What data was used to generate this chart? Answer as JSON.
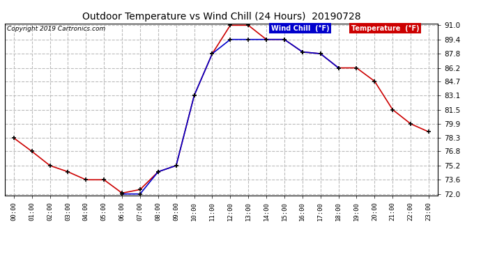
{
  "title": "Outdoor Temperature vs Wind Chill (24 Hours)  20190728",
  "copyright": "Copyright 2019 Cartronics.com",
  "x_labels": [
    "00:00",
    "01:00",
    "02:00",
    "03:00",
    "04:00",
    "05:00",
    "06:00",
    "07:00",
    "08:00",
    "09:00",
    "10:00",
    "11:00",
    "12:00",
    "13:00",
    "14:00",
    "15:00",
    "16:00",
    "17:00",
    "18:00",
    "19:00",
    "20:00",
    "21:00",
    "22:00",
    "23:00"
  ],
  "temperature": [
    78.3,
    76.8,
    75.2,
    74.5,
    73.6,
    73.6,
    72.1,
    72.5,
    74.5,
    75.2,
    83.1,
    87.8,
    91.0,
    91.0,
    89.4,
    89.4,
    88.0,
    87.8,
    86.2,
    86.2,
    84.7,
    81.5,
    79.9,
    79.0
  ],
  "wind_x": [
    6,
    7,
    8,
    9,
    10,
    11,
    12,
    13,
    14,
    15,
    16,
    17,
    18
  ],
  "wind_y": [
    72.0,
    72.0,
    74.5,
    75.2,
    83.1,
    87.8,
    89.4,
    89.4,
    89.4,
    89.4,
    88.0,
    87.8,
    86.2
  ],
  "temp_color": "#cc0000",
  "wind_color": "#0000cc",
  "ylim": [
    72.0,
    91.0
  ],
  "yticks": [
    72.0,
    73.6,
    75.2,
    76.8,
    78.3,
    79.9,
    81.5,
    83.1,
    84.7,
    86.2,
    87.8,
    89.4,
    91.0
  ],
  "background_color": "#ffffff",
  "grid_color": "#bbbbbb",
  "legend_wind_bg": "#0000cc",
  "legend_temp_bg": "#cc0000",
  "legend_wind_label": "Wind Chill  (°F)",
  "legend_temp_label": "Temperature  (°F)"
}
